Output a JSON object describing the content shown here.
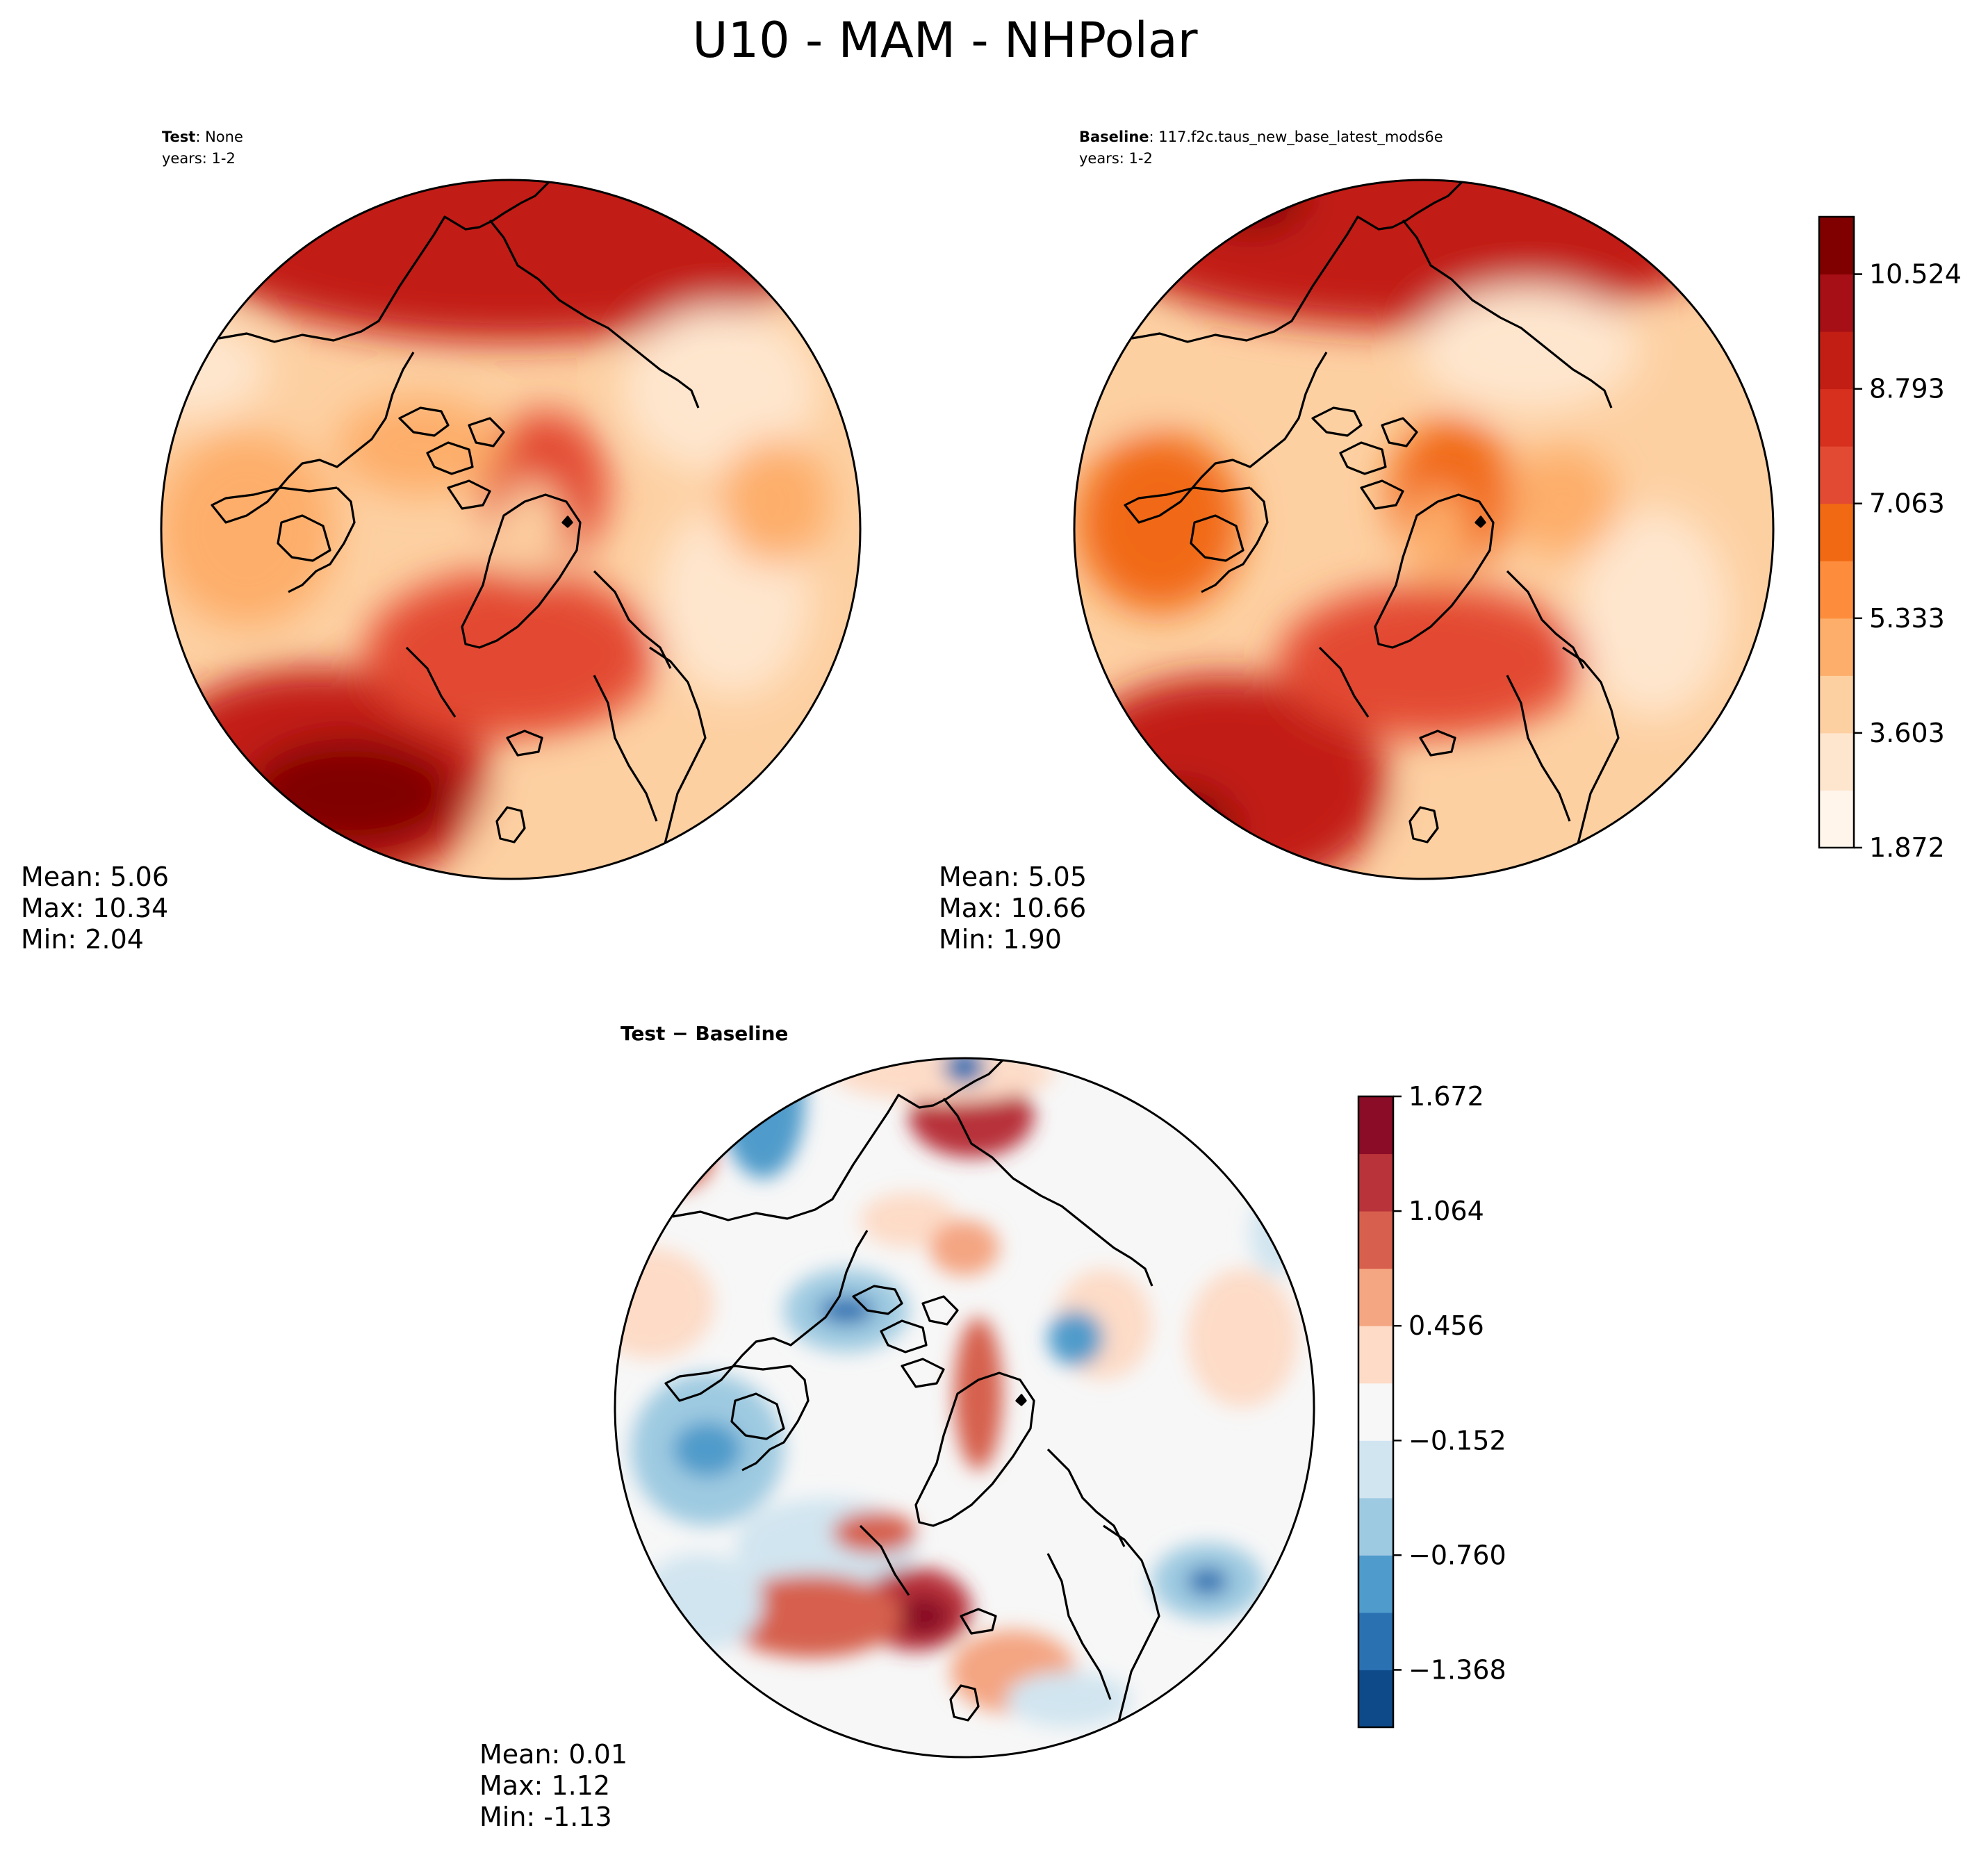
{
  "title": "U10 - MAM - NHPolar",
  "panels": [
    {
      "id": "test",
      "label_bold": "Test",
      "label_rest": ": None",
      "years": "years: 1-2",
      "stats": {
        "mean": "Mean:  5.06",
        "max": "Max: 10.34",
        "min": "Min:  2.04"
      }
    },
    {
      "id": "baseline",
      "label_bold": "Baseline",
      "label_rest": ": 117.f2c.taus_new_base_latest_mods6e",
      "years": "years: 1-2",
      "stats": {
        "mean": "Mean:  5.05",
        "max": "Max: 10.66",
        "min": "Min:  1.90"
      }
    },
    {
      "id": "diff",
      "label_bold": "Test − Baseline",
      "label_rest": "",
      "years": "",
      "stats": {
        "mean": "Mean:  0.01",
        "max": "Max:  1.12",
        "min": "Min: -1.13"
      }
    }
  ],
  "colorbars": {
    "main": {
      "ticks": [
        "1.872",
        "3.603",
        "5.333",
        "7.063",
        "8.793",
        "10.524"
      ],
      "colors": [
        "#fff5eb",
        "#fee6ce",
        "#fdd0a2",
        "#fdae6b",
        "#fd8d3c",
        "#f16913",
        "#e34a33",
        "#d7301f",
        "#c21e14",
        "#a50f15",
        "#800000"
      ]
    },
    "diff": {
      "ticks": [
        "−1.368",
        "−0.760",
        "−0.152",
        "0.456",
        "1.064",
        "1.672"
      ],
      "colors": [
        "#0e4a8a",
        "#2a71b2",
        "#4f9bcb",
        "#9ecae1",
        "#d1e5f0",
        "#f7f7f7",
        "#fddbc7",
        "#f4a582",
        "#d6604d",
        "#b8333a",
        "#8a0c27"
      ]
    }
  },
  "chart_data": [
    {
      "type": "heatmap",
      "title": "Test: None",
      "subtitle": "years: 1-2",
      "projection": "north polar stereographic",
      "colorscale": "sequential red",
      "range": [
        1.872,
        11.39
      ],
      "mean": 5.06,
      "max": 10.34,
      "min": 2.04
    },
    {
      "type": "heatmap",
      "title": "Baseline: 117.f2c.taus_new_base_latest_mods6e",
      "subtitle": "years: 1-2",
      "projection": "north polar stereographic",
      "colorscale": "sequential red",
      "colorbar_ticks": [
        1.872,
        3.603,
        5.333,
        7.063,
        8.793,
        10.524
      ],
      "range": [
        1.872,
        11.39
      ],
      "mean": 5.05,
      "max": 10.66,
      "min": 1.9
    },
    {
      "type": "heatmap",
      "title": "Test − Baseline",
      "projection": "north polar stereographic",
      "colorscale": "diverging blue-red",
      "colorbar_ticks": [
        -1.368,
        -0.76,
        -0.152,
        0.456,
        1.064,
        1.672
      ],
      "range": [
        -1.672,
        1.672
      ],
      "mean": 0.01,
      "max": 1.12,
      "min": -1.13
    }
  ]
}
